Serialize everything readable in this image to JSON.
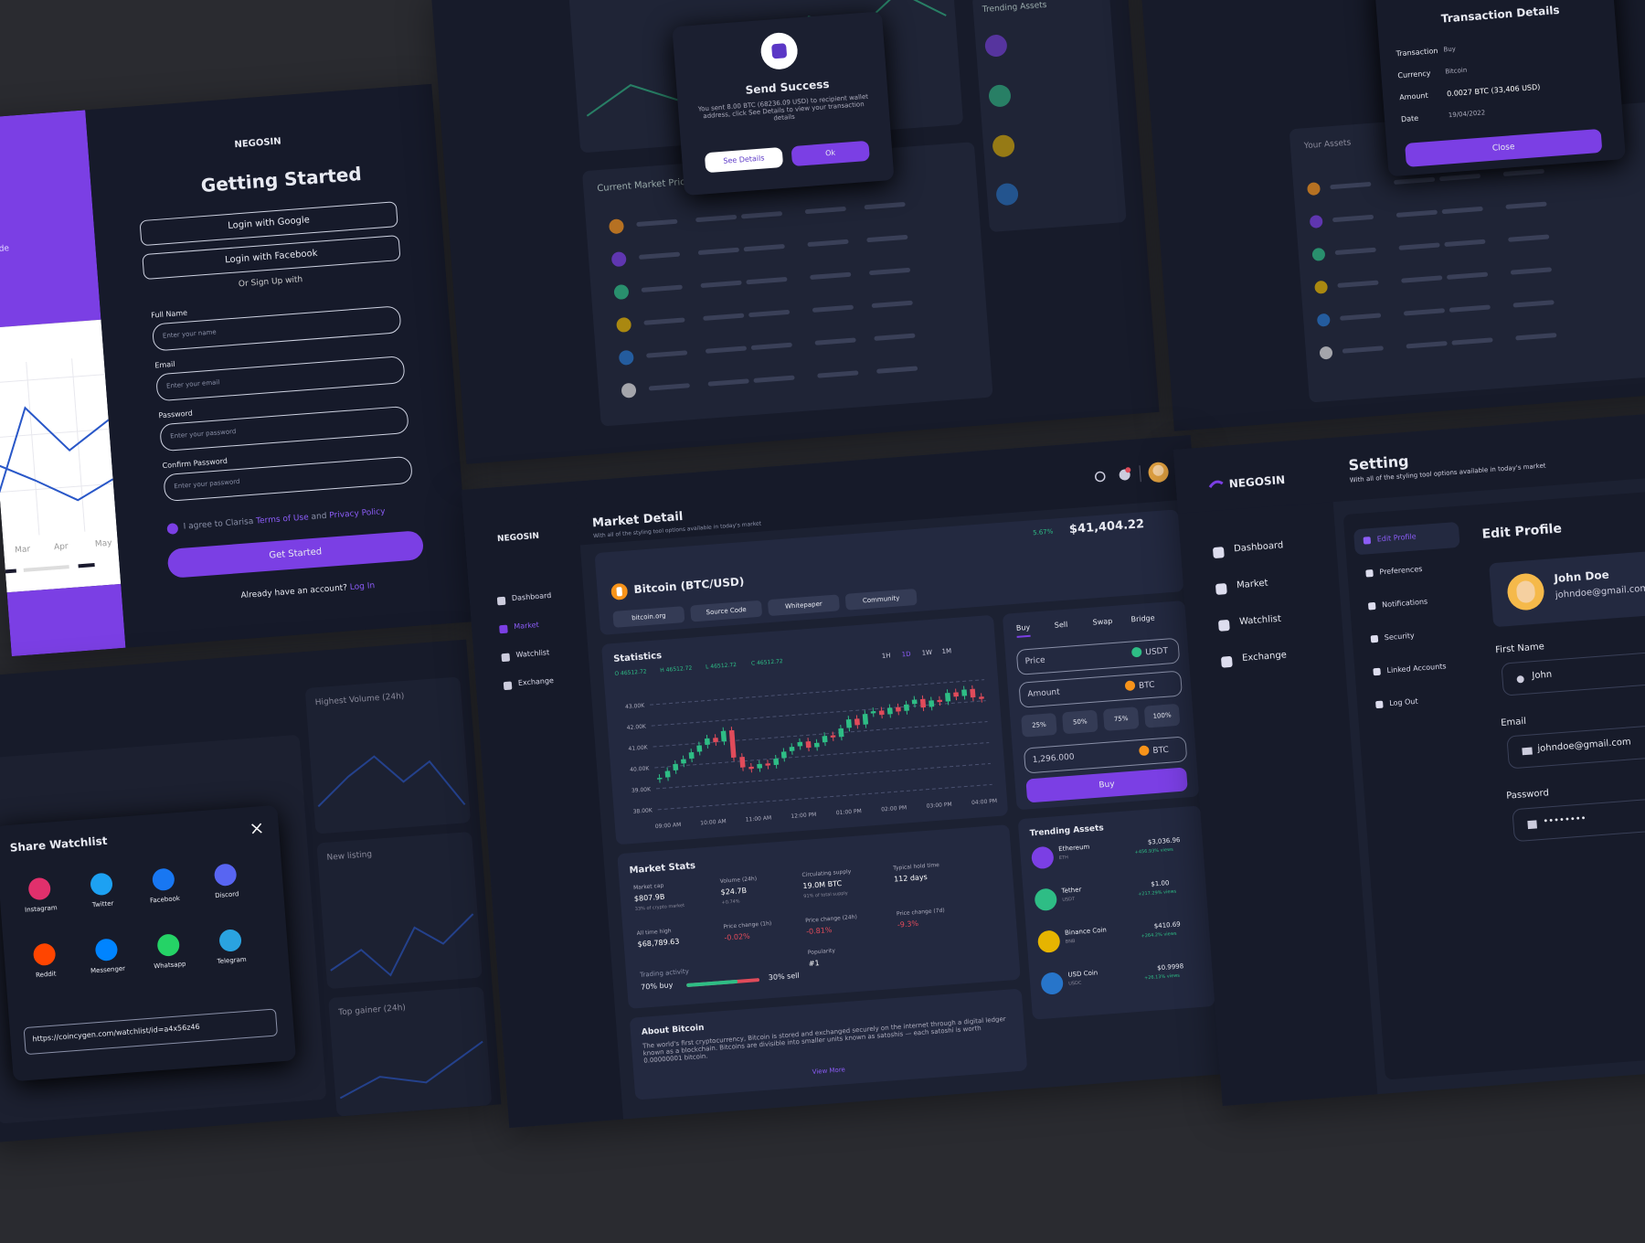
{
  "signup": {
    "brand": "NEGOSIN",
    "title": "Getting Started",
    "google": "Login with Google",
    "facebook": "Login with Facebook",
    "or": "Or Sign Up with",
    "fields": [
      {
        "label": "Full Name",
        "placeholder": "Enter your name"
      },
      {
        "label": "Email",
        "placeholder": "Enter your email"
      },
      {
        "label": "Password",
        "placeholder": "Enter your password"
      },
      {
        "label": "Confirm Password",
        "placeholder": "Enter your password"
      }
    ],
    "agree": "I agree to Clarisa",
    "terms": "Terms of Use",
    "and": "and",
    "privacy": "Privacy Policy",
    "button": "Get Started",
    "have_account": "Already have an account?",
    "login": "Log In",
    "side_text": "Trade",
    "months": [
      "Mar",
      "Apr",
      "May"
    ]
  },
  "market_list": {
    "title": "Current Market Price",
    "trending": "Trending Assets"
  },
  "send_success": {
    "title": "Send Success",
    "message": "You sent 8.00 BTC (68236.09 USD) to recipient wallet address, click See Details to view your transaction details",
    "details": "See Details",
    "ok": "Ok"
  },
  "assets": {
    "title": "Your Assets"
  },
  "transaction": {
    "title": "Transaction Details",
    "rows": [
      [
        "Transaction",
        "Buy"
      ],
      [
        "Currency",
        "Bitcoin"
      ],
      [
        "Amount",
        "0.0027 BTC (33,406 USD)"
      ],
      [
        "Date",
        "19/04/2022"
      ]
    ],
    "close": "Close"
  },
  "share": {
    "title": "Share Watchlist",
    "apps": [
      "Instagram",
      "Twitter",
      "Facebook",
      "Discord",
      "Reddit",
      "Messenger",
      "Whatsapp",
      "Telegram"
    ],
    "url": "https://coincygen.com/watchlist/id=a4x56z46",
    "side": [
      "Highest Volume (24h)",
      "New listing",
      "Top gainer (24h)"
    ]
  },
  "market_detail": {
    "brand": "NEGOSIN",
    "nav": [
      "Dashboard",
      "Market",
      "Watchlist",
      "Exchange"
    ],
    "title": "Market Detail",
    "subtitle": "With all of the styling tool options available in today's market",
    "change": "5.67%",
    "price": "$41,404.22",
    "coin": "Bitcoin (BTC/USD)",
    "links": [
      "bitcoin.org",
      "Source Code",
      "Whitepaper",
      "Community"
    ],
    "statistics": {
      "title": "Statistics",
      "ohlc": [
        "O 46512.72",
        "H 46512.72",
        "L 46512.72",
        "C 46512.72"
      ],
      "ranges": [
        "1H",
        "1D",
        "1W",
        "1M"
      ],
      "ylim": [
        38000,
        43000
      ],
      "yticks": [
        {
          "value": 38000,
          "label": "38.00K"
        },
        {
          "value": 39000,
          "label": "39.00K"
        },
        {
          "value": 40000,
          "label": "40.00K"
        },
        {
          "value": 41000,
          "label": "41.00K"
        },
        {
          "value": 42000,
          "label": "42.00K"
        },
        {
          "value": 43000,
          "label": "43.00K"
        }
      ],
      "xticks": [
        "09:00 AM",
        "10:00 AM",
        "11:00 AM",
        "12:00 PM",
        "01:00 PM",
        "02:00 PM",
        "03:00 PM",
        "04:00 PM"
      ],
      "closes": [
        39500,
        39800,
        40100,
        40300,
        40600,
        40900,
        41200,
        41000,
        41500,
        40200,
        39700,
        39600,
        39800,
        39700,
        40000,
        40300,
        40500,
        40700,
        40400,
        40600,
        40900,
        40800,
        41200,
        41600,
        41300,
        41800,
        41900,
        41700,
        42000,
        41800,
        42100,
        42300,
        41900,
        42200,
        42100,
        42500,
        42300,
        42600,
        42200,
        42100
      ]
    },
    "trade": {
      "tabs": [
        "Buy",
        "Sell",
        "Swap",
        "Bridge"
      ],
      "price": "Price",
      "price_unit": "USDT",
      "amount": "Amount",
      "amount_unit": "BTC",
      "pcts": [
        "25%",
        "50%",
        "75%",
        "100%"
      ],
      "total": "1,296.000",
      "total_unit": "BTC",
      "button": "Buy"
    },
    "stats": {
      "title": "Market Stats",
      "items": [
        {
          "label": "Market cap",
          "value": "$807.9B",
          "note": "33% of crypto market"
        },
        {
          "label": "Volume (24h)",
          "value": "$24.7B",
          "note": "+0.74%"
        },
        {
          "label": "Circulating supply",
          "value": "19.0M BTC",
          "note": "91% of total supply"
        },
        {
          "label": "Typical hold time",
          "value": "112 days"
        },
        {
          "label": "All time high",
          "value": "$68,789.63"
        },
        {
          "label": "Price change (1h)",
          "value": "-0.02%"
        },
        {
          "label": "Price change (24h)",
          "value": "-0.81%"
        },
        {
          "label": "Price change (7d)",
          "value": "-9.3%"
        },
        {
          "label": "Popularity",
          "value": "#1"
        }
      ],
      "activity": "Trading activity",
      "buy": "70% buy",
      "sell": "30% sell"
    },
    "trending": {
      "title": "Trending Assets",
      "items": [
        {
          "name": "Ethereum",
          "sym": "ETH",
          "price": "$3,036.96",
          "views": "+456.93% views"
        },
        {
          "name": "Tether",
          "sym": "USDT",
          "price": "$1.00",
          "views": "+217.29% views"
        },
        {
          "name": "Binance Coin",
          "sym": "BNB",
          "price": "$410.69",
          "views": "+264.2% views"
        },
        {
          "name": "USD Coin",
          "sym": "USDC",
          "price": "$0.9998",
          "views": "+26.13% views"
        }
      ]
    },
    "about": {
      "title": "About Bitcoin",
      "text": "The world's first cryptocurrency, Bitcoin is stored and exchanged securely on the internet through a digital ledger known as a blockchain. Bitcoins are divisible into smaller units known as satoshis — each satoshi is worth 0.00000001 bitcoin.",
      "more": "View More"
    }
  },
  "settings": {
    "brand": "NEGOSIN",
    "nav": [
      "Dashboard",
      "Market",
      "Watchlist",
      "Exchange"
    ],
    "title": "Setting",
    "subtitle": "With all of the styling tool options available in today's market",
    "menu": [
      "Edit Profile",
      "Preferences",
      "Notifications",
      "Security",
      "Linked Accounts",
      "Log Out"
    ],
    "heading": "Edit Profile",
    "name": "John Doe",
    "email_short": "johndoe@gmail.com",
    "first_name_label": "First Name",
    "first_name": "John",
    "email_label": "Email",
    "email": "johndoe@gmail.com",
    "password_label": "Password",
    "password": "••••••••"
  }
}
